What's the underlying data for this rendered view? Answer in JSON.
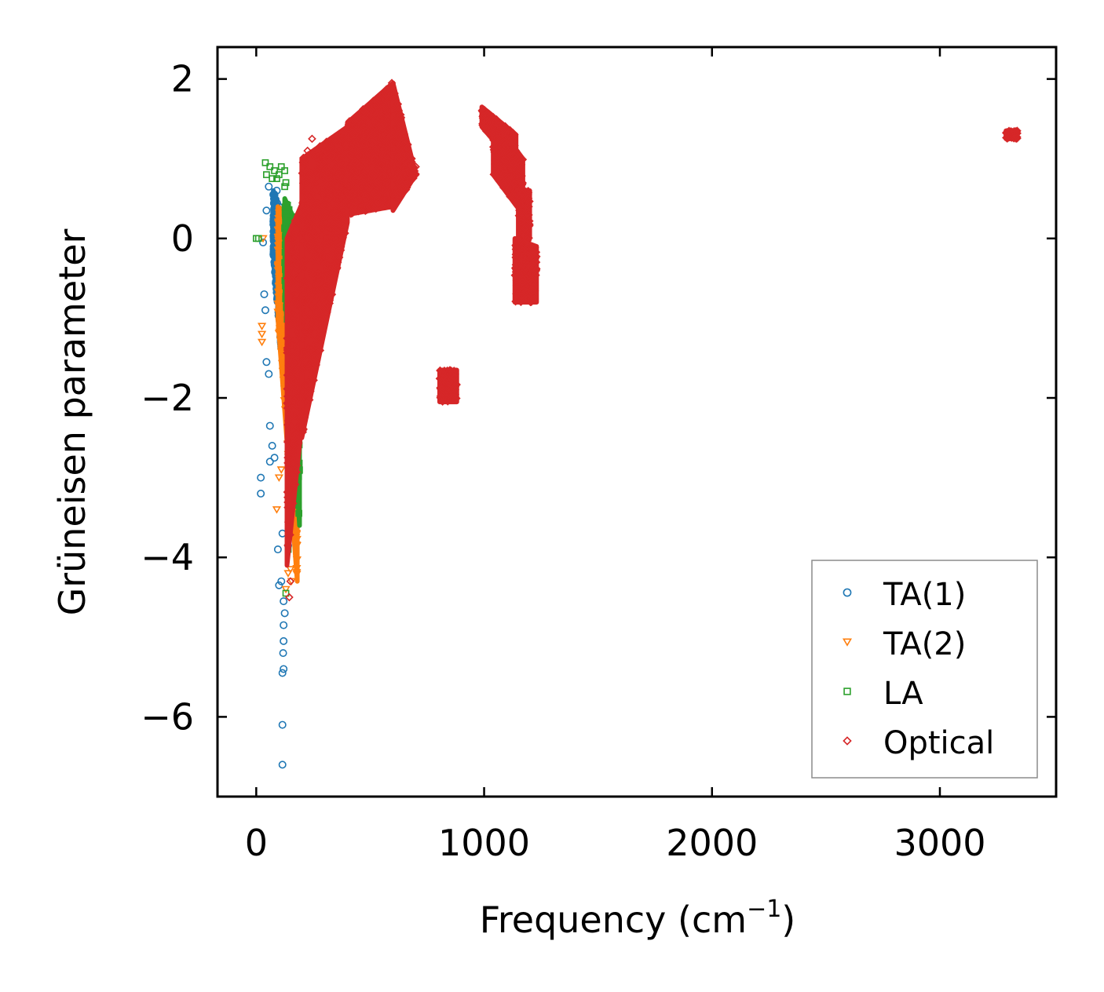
{
  "chart_data": {
    "type": "scatter",
    "title": "",
    "xlabel": "Frequency (cm",
    "xlabel_superscript": "−1",
    "xlabel_suffix": ")",
    "ylabel": "Grüneisen parameter",
    "xlim": [
      -170,
      3510
    ],
    "ylim": [
      -7.0,
      2.4
    ],
    "xticks": [
      0,
      1000,
      2000,
      3000
    ],
    "xtick_labels": [
      "0",
      "1000",
      "2000",
      "3000"
    ],
    "yticks": [
      2,
      0,
      -2,
      -4,
      -6
    ],
    "ytick_labels": [
      "2",
      "0",
      "−2",
      "−4",
      "−6"
    ],
    "grid": false,
    "legend_position": "lower-right",
    "series": [
      {
        "name": "TA(1)",
        "marker": "circle",
        "color": "#1f77b4",
        "regions": [
          {
            "x": [
              75,
              175
            ],
            "ylo_at_x0": -0.2,
            "ylo_at_x1": -3.6,
            "yhi_at_x0": 0.6,
            "yhi_at_x1": -0.3,
            "n": 900,
            "fill": true
          }
        ],
        "points": [
          [
            20,
            -3.0
          ],
          [
            20,
            -3.2
          ],
          [
            30,
            -0.05
          ],
          [
            35,
            -0.7
          ],
          [
            40,
            -0.9
          ],
          [
            45,
            -1.55
          ],
          [
            55,
            -1.7
          ],
          [
            45,
            0.35
          ],
          [
            55,
            0.65
          ],
          [
            75,
            0.55
          ],
          [
            90,
            0.6
          ],
          [
            100,
            0.4
          ],
          [
            60,
            -2.35
          ],
          [
            70,
            -2.6
          ],
          [
            60,
            -2.8
          ],
          [
            80,
            -2.75
          ],
          [
            115,
            -3.7
          ],
          [
            110,
            -4.3
          ],
          [
            120,
            -4.55
          ],
          [
            125,
            -4.7
          ],
          [
            120,
            -4.85
          ],
          [
            120,
            -5.05
          ],
          [
            118,
            -5.2
          ],
          [
            120,
            -5.4
          ],
          [
            115,
            -5.45
          ],
          [
            115,
            -6.1
          ],
          [
            115,
            -6.6
          ],
          [
            95,
            -3.9
          ],
          [
            100,
            -4.35
          ],
          [
            140,
            -3.85
          ]
        ]
      },
      {
        "name": "TA(2)",
        "marker": "triangle-down",
        "color": "#ff7f0e",
        "regions": [
          {
            "x": [
              95,
              180
            ],
            "ylo_at_x0": -1.0,
            "ylo_at_x1": -4.3,
            "yhi_at_x0": 0.4,
            "yhi_at_x1": 0.2,
            "n": 500,
            "fill": true
          }
        ],
        "points": [
          [
            25,
            -1.2
          ],
          [
            25,
            -1.3
          ],
          [
            25,
            -1.1
          ],
          [
            140,
            -4.2
          ],
          [
            130,
            -4.4
          ],
          [
            155,
            -4.3
          ],
          [
            150,
            -4.15
          ],
          [
            90,
            -3.4
          ],
          [
            100,
            -3.0
          ],
          [
            110,
            -2.9
          ],
          [
            30,
            0.0
          ],
          [
            170,
            -0.3
          ],
          [
            175,
            -0.5
          ]
        ]
      },
      {
        "name": "LA",
        "marker": "square",
        "color": "#2ca02c",
        "regions": [
          {
            "x": [
              125,
              190
            ],
            "ylo_at_x0": -0.6,
            "ylo_at_x1": -3.6,
            "yhi_at_x0": 0.5,
            "yhi_at_x1": 0.1,
            "n": 320,
            "fill": true
          }
        ],
        "points": [
          [
            40,
            0.95
          ],
          [
            60,
            0.9
          ],
          [
            80,
            0.85
          ],
          [
            100,
            0.8
          ],
          [
            110,
            0.9
          ],
          [
            125,
            0.85
          ],
          [
            130,
            0.7
          ],
          [
            125,
            0.65
          ],
          [
            45,
            0.8
          ],
          [
            70,
            0.75
          ],
          [
            90,
            0.75
          ],
          [
            0,
            0.0
          ],
          [
            10,
            0.0
          ],
          [
            140,
            -3.9
          ],
          [
            130,
            -4.45
          ],
          [
            190,
            0.05
          ],
          [
            185,
            -2.2
          ],
          [
            180,
            -2.8
          ]
        ]
      },
      {
        "name": "Optical",
        "marker": "diamond",
        "color": "#d62728",
        "regions": [
          {
            "x": [
              135,
              270
            ],
            "ylo_at_x0": -4.1,
            "ylo_at_x1": -0.4,
            "yhi_at_x0": 0.0,
            "yhi_at_x1": 0.9,
            "n": 450,
            "fill": true
          },
          {
            "x": [
              200,
              400
            ],
            "ylo_at_x0": -2.5,
            "ylo_at_x1": 0.2,
            "yhi_at_x0": 1.0,
            "yhi_at_x1": 1.4,
            "n": 500,
            "fill": true
          },
          {
            "x": [
              400,
              600
            ],
            "ylo_at_x0": 0.3,
            "ylo_at_x1": 0.4,
            "yhi_at_x0": 1.45,
            "yhi_at_x1": 1.95,
            "n": 450,
            "fill": true
          },
          {
            "x": [
              600,
              700
            ],
            "ylo_at_x0": 0.35,
            "ylo_at_x1": 0.8,
            "yhi_at_x0": 1.95,
            "yhi_at_x1": 0.8,
            "n": 200,
            "fill": true
          },
          {
            "x": [
              990,
              1140
            ],
            "ylo_at_x0": 1.4,
            "ylo_at_x1": 0.9,
            "yhi_at_x0": 1.65,
            "yhi_at_x1": 1.3,
            "n": 250,
            "fill": true
          },
          {
            "x": [
              1040,
              1170
            ],
            "ylo_at_x0": 0.8,
            "ylo_at_x1": 0.3,
            "yhi_at_x0": 1.5,
            "yhi_at_x1": 1.0,
            "n": 200,
            "fill": true
          },
          {
            "x": [
              1150,
              1200
            ],
            "ylo_at_x0": -0.4,
            "ylo_at_x1": 0.0,
            "yhi_at_x0": 0.6,
            "yhi_at_x1": 0.6,
            "n": 100,
            "fill": true
          },
          {
            "x": [
              1135,
              1230
            ],
            "ylo_at_x0": -0.8,
            "ylo_at_x1": -0.8,
            "yhi_at_x0": 0.0,
            "yhi_at_x1": -0.1,
            "n": 150,
            "fill": true
          },
          {
            "x": [
              805,
              880
            ],
            "ylo_at_x0": -2.05,
            "ylo_at_x1": -2.05,
            "yhi_at_x0": -1.65,
            "yhi_at_x1": -1.65,
            "n": 80,
            "fill": true
          },
          {
            "x": [
              3290,
              3340
            ],
            "ylo_at_x0": 1.25,
            "ylo_at_x1": 1.25,
            "yhi_at_x0": 1.35,
            "yhi_at_x1": 1.35,
            "n": 40,
            "fill": true
          }
        ],
        "points": [
          [
            245,
            1.25
          ],
          [
            225,
            1.1
          ],
          [
            270,
            -0.45
          ],
          [
            280,
            -0.55
          ],
          [
            255,
            -1.0
          ],
          [
            240,
            -1.4
          ],
          [
            225,
            -1.6
          ],
          [
            210,
            -2.2
          ],
          [
            150,
            -4.3
          ],
          [
            145,
            -4.5
          ],
          [
            595,
            1.95
          ],
          [
            700,
            0.9
          ]
        ]
      }
    ]
  }
}
